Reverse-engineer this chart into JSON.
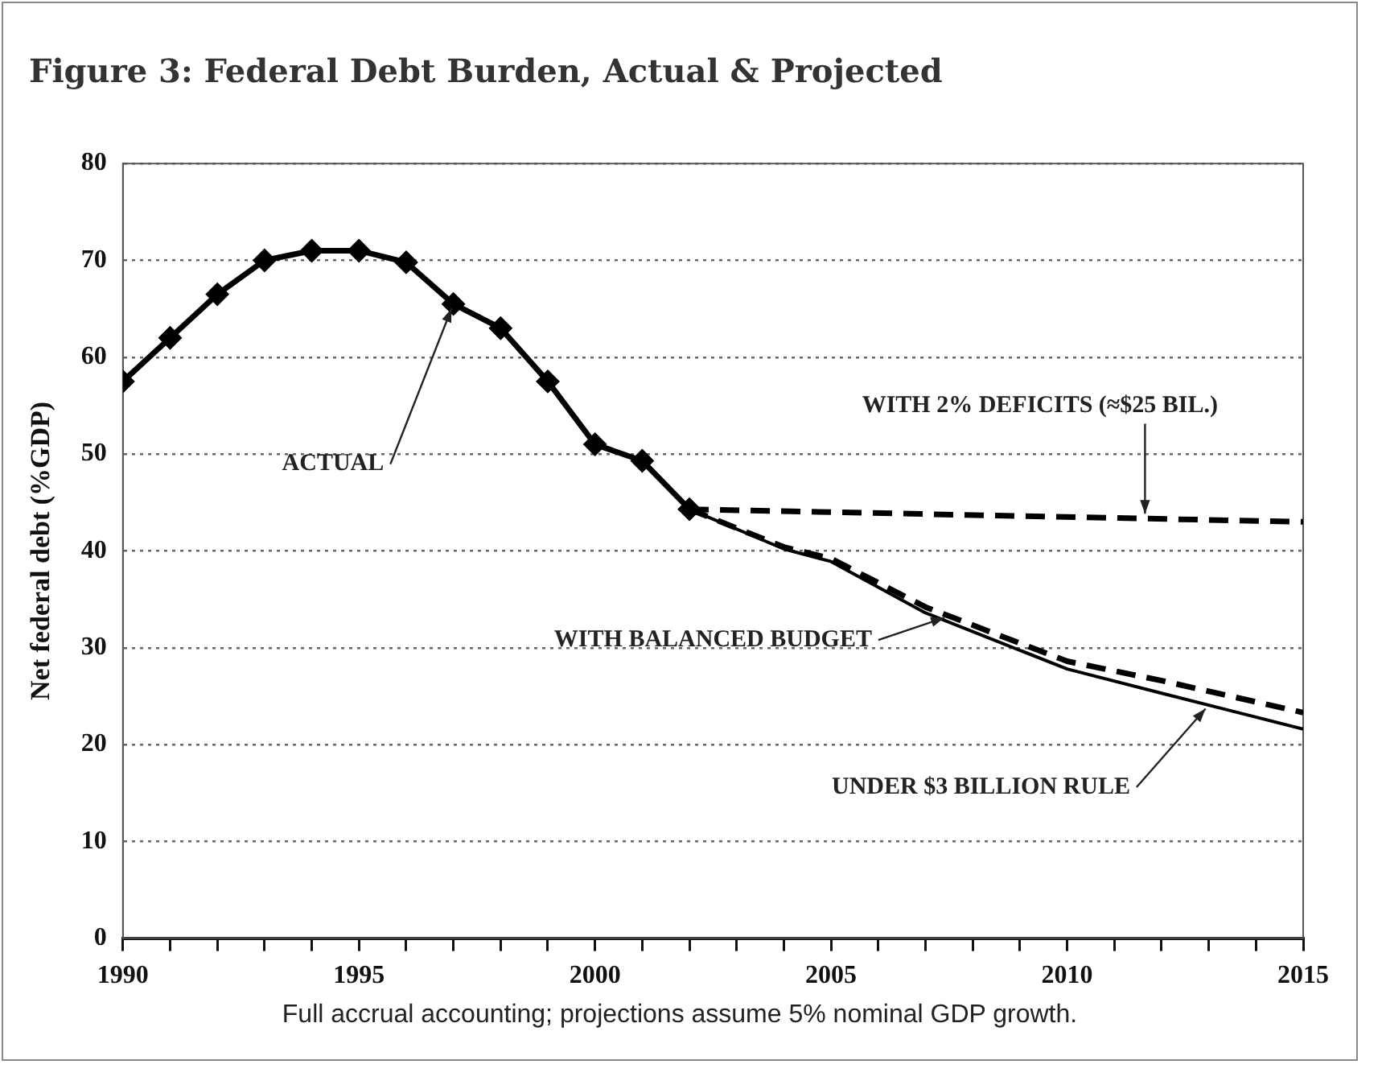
{
  "chart_data": {
    "type": "line",
    "title": "Figure 3: Federal Debt Burden, Actual & Projected",
    "ylabel": "Net federal debt (%GDP)",
    "annotations": [
      "Full accrual accounting; projections assume 5% nominal GDP growth."
    ],
    "xlim": [
      1990,
      2015
    ],
    "xticks": [
      1990,
      {
        "value": 1991,
        "label": null
      },
      {
        "value": 1992,
        "label": null
      },
      {
        "value": 1993,
        "label": null
      },
      {
        "value": 1994,
        "label": null
      },
      1995,
      {
        "value": 1996,
        "label": null
      },
      {
        "value": 1997,
        "label": null
      },
      {
        "value": 1998,
        "label": null
      },
      {
        "value": 1999,
        "label": null
      },
      2000,
      {
        "value": 2001,
        "label": null
      },
      {
        "value": 2002,
        "label": null
      },
      {
        "value": 2003,
        "label": null
      },
      {
        "value": 2004,
        "label": null
      },
      2005,
      {
        "value": 2006,
        "label": null
      },
      {
        "value": 2007,
        "label": null
      },
      {
        "value": 2008,
        "label": null
      },
      {
        "value": 2009,
        "label": null
      },
      2010,
      {
        "value": 2011,
        "label": null
      },
      {
        "value": 2012,
        "label": null
      },
      {
        "value": 2013,
        "label": null
      },
      {
        "value": 2014,
        "label": null
      },
      2015
    ],
    "ylim": [
      0,
      80
    ],
    "yticks": [
      0,
      10,
      20,
      30,
      40,
      50,
      60,
      70,
      80
    ],
    "grid": "y",
    "legend": false,
    "series": [
      {
        "name": "ACTUAL",
        "color": "#000000",
        "marker": "diamond",
        "line_style": "solid",
        "x": [
          1990,
          1991,
          1992,
          1993,
          1994,
          1995,
          1996,
          1997,
          1998,
          1999,
          2000,
          2001,
          2002
        ],
        "values": [
          57.5,
          62,
          66.5,
          70,
          71,
          71,
          69.8,
          65.5,
          63,
          57.5,
          51,
          49.3,
          44.3
        ]
      },
      {
        "name": "WITH 2% DEFICITS (≈$25 BIL.)",
        "color": "#000000",
        "marker": "none",
        "line_style": "dashed",
        "x": [
          2002,
          2015
        ],
        "values": [
          44.3,
          43
        ]
      },
      {
        "name": "WITH BALANCED BUDGET",
        "color": "#000000",
        "marker": "none",
        "line_style": "dashed",
        "x": [
          2002,
          2004,
          2005,
          2007,
          2010,
          2012,
          2015
        ],
        "values": [
          44.3,
          40.4,
          39.2,
          34.2,
          28.6,
          26.6,
          23.3
        ]
      },
      {
        "name": "UNDER $3 BILLION RULE",
        "color": "#000000",
        "marker": "none",
        "line_style": "solid",
        "x": [
          2002,
          2004,
          2005,
          2007,
          2010,
          2012,
          2015
        ],
        "values": [
          44.3,
          40.2,
          38.9,
          33.6,
          27.8,
          25.3,
          21.6
        ]
      }
    ]
  }
}
